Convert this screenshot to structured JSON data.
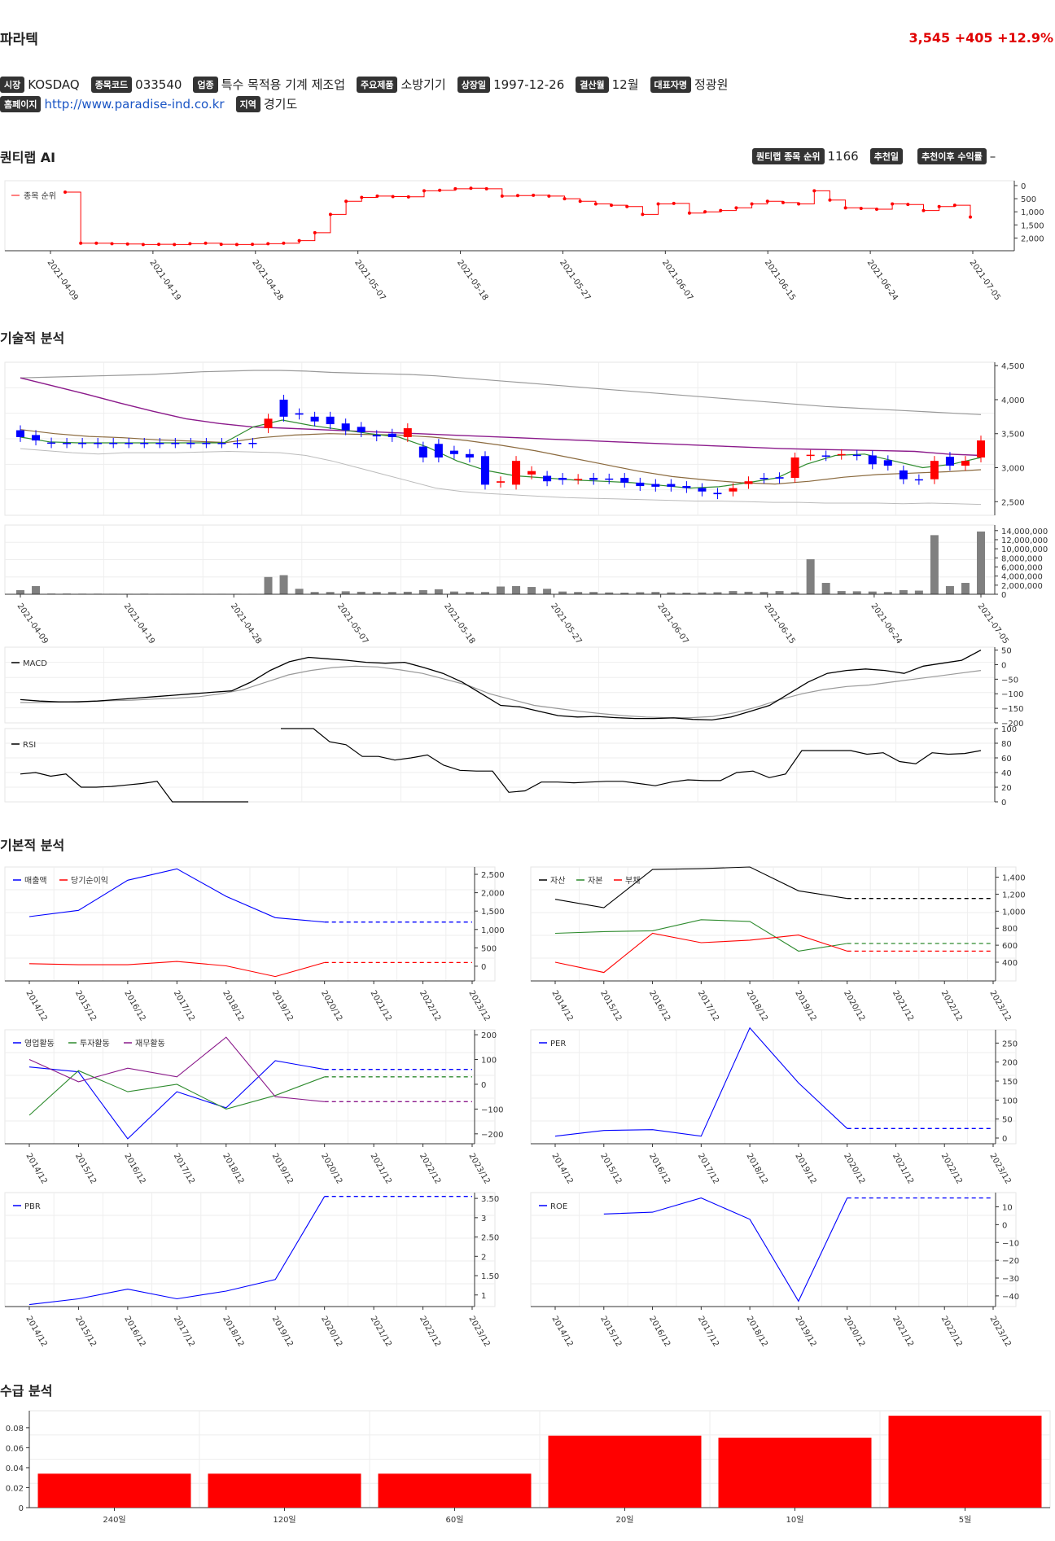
{
  "header": {
    "company": "파라텍",
    "price": "3,545",
    "change": "+405",
    "change_pct": "+12.9%"
  },
  "info": {
    "market_label": "시장",
    "market": "KOSDAQ",
    "code_label": "종목코드",
    "code": "033540",
    "industry_label": "업종",
    "industry": "특수 목적용 기계 제조업",
    "product_label": "주요제품",
    "product": "소방기기",
    "listing_label": "상장일",
    "listing": "1997-12-26",
    "fiscal_label": "결산월",
    "fiscal": "12월",
    "ceo_label": "대표자명",
    "ceo": "정광원",
    "homepage_label": "홈페이지",
    "homepage": "http://www.paradise-ind.co.kr",
    "region_label": "지역",
    "region": "경기도"
  },
  "sections": {
    "ai": "퀀티랩 AI",
    "tech": "기술적 분석",
    "fund": "기본적 분석",
    "flow": "수급 분석"
  },
  "ai_panel": {
    "rank_label": "퀀티랩 종목 순위",
    "rank": "1166",
    "rec_date_label": "추천일",
    "rec_date": "",
    "rec_return_label": "추천이후 수익률",
    "rec_return": "–"
  },
  "colors": {
    "up": "#ff0000",
    "down": "#0000ff",
    "ma_short": "#2e8b2e",
    "ma_mid": "#8b6a3e",
    "ma_long": "#8b1a8b"
  },
  "chart_data": [
    {
      "id": "rank",
      "type": "line",
      "legend": [
        "종목 순위"
      ],
      "x_ticks": [
        "2021-04-09",
        "2021-04-19",
        "2021-04-28",
        "2021-05-07",
        "2021-05-18",
        "2021-05-27",
        "2021-06-07",
        "2021-06-15",
        "2021-06-24",
        "2021-07-05"
      ],
      "y_ticks": [
        "0",
        "500",
        "1,000",
        "1,500",
        "2,000"
      ],
      "ylim": [
        2300,
        0
      ],
      "values": [
        250,
        2200,
        2200,
        2220,
        2230,
        2250,
        2240,
        2250,
        2220,
        2200,
        2240,
        2250,
        2240,
        2220,
        2200,
        2100,
        1800,
        1100,
        600,
        450,
        400,
        420,
        430,
        200,
        180,
        120,
        100,
        120,
        400,
        380,
        370,
        400,
        500,
        600,
        700,
        750,
        800,
        1100,
        700,
        680,
        1050,
        1000,
        950,
        850,
        700,
        600,
        650,
        700,
        200,
        550,
        850,
        870,
        900,
        700,
        720,
        950,
        800,
        750,
        1200
      ]
    },
    {
      "id": "price",
      "type": "candlestick",
      "x_ticks": [
        "2021-04-09",
        "2021-04-19",
        "2021-04-28",
        "2021-05-07",
        "2021-05-18",
        "2021-05-27",
        "2021-06-07",
        "2021-06-15",
        "2021-06-24",
        "2021-07-05"
      ],
      "y_ticks": [
        "2,500",
        "3,000",
        "3,500",
        "4,000",
        "4,500"
      ],
      "ylim": [
        2300,
        4550
      ],
      "candles": [
        [
          3550,
          3450
        ],
        [
          3480,
          3400
        ],
        [
          3370,
          3360
        ],
        [
          3365,
          3360
        ],
        [
          3365,
          3360
        ],
        [
          3365,
          3360
        ],
        [
          3365,
          3360
        ],
        [
          3365,
          3360
        ],
        [
          3365,
          3360
        ],
        [
          3365,
          3360
        ],
        [
          3365,
          3360
        ],
        [
          3365,
          3360
        ],
        [
          3365,
          3360
        ],
        [
          3365,
          3360
        ],
        [
          3365,
          3360
        ],
        [
          3365,
          3360
        ],
        [
          3580,
          3720
        ],
        [
          4000,
          3750
        ],
        [
          3800,
          3780
        ],
        [
          3750,
          3680
        ],
        [
          3750,
          3640
        ],
        [
          3650,
          3550
        ],
        [
          3600,
          3520
        ],
        [
          3480,
          3460
        ],
        [
          3500,
          3450
        ],
        [
          3450,
          3580
        ],
        [
          3310,
          3150
        ],
        [
          3350,
          3150
        ],
        [
          3250,
          3200
        ],
        [
          3200,
          3150
        ],
        [
          3170,
          2750
        ],
        [
          2780,
          2800
        ],
        [
          2750,
          3100
        ],
        [
          2900,
          2950
        ],
        [
          2880,
          2800
        ],
        [
          2850,
          2820
        ],
        [
          2825,
          2835
        ],
        [
          2850,
          2820
        ],
        [
          2840,
          2830
        ],
        [
          2850,
          2780
        ],
        [
          2780,
          2730
        ],
        [
          2760,
          2720
        ],
        [
          2760,
          2720
        ],
        [
          2730,
          2700
        ],
        [
          2700,
          2650
        ],
        [
          2630,
          2610
        ],
        [
          2650,
          2700
        ],
        [
          2760,
          2800
        ],
        [
          2850,
          2840
        ],
        [
          2860,
          2840
        ],
        [
          2850,
          3150
        ],
        [
          3180,
          3190
        ],
        [
          3180,
          3170
        ],
        [
          3190,
          3200
        ],
        [
          3190,
          3180
        ],
        [
          3180,
          3050
        ],
        [
          3110,
          3030
        ],
        [
          2960,
          2830
        ],
        [
          2830,
          2820
        ],
        [
          2830,
          3100
        ],
        [
          3160,
          3030
        ],
        [
          3030,
          3100
        ],
        [
          3150,
          3400
        ]
      ],
      "bb_upper": [
        4320,
        4330,
        4340,
        4350,
        4360,
        4370,
        4390,
        4410,
        4420,
        4430,
        4430,
        4420,
        4400,
        4390,
        4380,
        4370,
        4350,
        4320,
        4290,
        4260,
        4230,
        4200,
        4170,
        4140,
        4110,
        4080,
        4050,
        4020,
        3990,
        3960,
        3930,
        3900,
        3880,
        3860,
        3840,
        3820,
        3800,
        3780
      ],
      "bb_lower": [
        3280,
        3250,
        3220,
        3200,
        3220,
        3220,
        3220,
        3230,
        3240,
        3230,
        3220,
        3180,
        3100,
        3000,
        2900,
        2800,
        2700,
        2650,
        2620,
        2600,
        2580,
        2560,
        2550,
        2540,
        2530,
        2520,
        2510,
        2510,
        2500,
        2490,
        2490,
        2480,
        2480,
        2480,
        2470,
        2480,
        2470,
        2460
      ],
      "ma5": [
        3450,
        3380,
        3365,
        3365,
        3365,
        3365,
        3365,
        3365,
        3600,
        3700,
        3620,
        3560,
        3500,
        3450,
        3300,
        3100,
        2960,
        2880,
        2850,
        2820,
        2800,
        2780,
        2740,
        2700,
        2720,
        2780,
        2850,
        3050,
        3180,
        3200,
        3100,
        3000,
        3050,
        3150
      ],
      "ma20": [
        3560,
        3500,
        3460,
        3440,
        3410,
        3390,
        3370,
        3440,
        3480,
        3500,
        3490,
        3480,
        3450,
        3400,
        3330,
        3250,
        3150,
        3050,
        2950,
        2870,
        2820,
        2780,
        2760,
        2800,
        2860,
        2900,
        2920,
        2940,
        2970
      ],
      "ma60": [
        4320,
        4200,
        4080,
        3950,
        3830,
        3720,
        3650,
        3600,
        3580,
        3560,
        3540,
        3520,
        3500,
        3480,
        3460,
        3440,
        3420,
        3400,
        3380,
        3360,
        3340,
        3320,
        3300,
        3280,
        3270,
        3260,
        3250,
        3240,
        3200,
        3180
      ]
    },
    {
      "id": "volume",
      "type": "bar",
      "y_ticks": [
        "0",
        "2,000,000",
        "4,000,000",
        "6,000,000",
        "8,000,000",
        "10,000,000",
        "12,000,000",
        "14,000,000"
      ],
      "ylim": [
        0,
        14500000
      ],
      "values": [
        900000,
        1800000,
        150000,
        150000,
        120000,
        120000,
        100000,
        100000,
        120000,
        100000,
        100000,
        100000,
        100000,
        100000,
        100000,
        100000,
        3800000,
        4200000,
        1200000,
        500000,
        500000,
        650000,
        550000,
        500000,
        500000,
        550000,
        900000,
        1100000,
        600000,
        500000,
        500000,
        1700000,
        1800000,
        1600000,
        1200000,
        600000,
        500000,
        500000,
        400000,
        350000,
        450000,
        500000,
        400000,
        350000,
        400000,
        450000,
        700000,
        550000,
        500000,
        700000,
        450000,
        7700000,
        2500000,
        700000,
        650000,
        600000,
        500000,
        900000,
        800000,
        13000000,
        1800000,
        2500000,
        13800000
      ]
    },
    {
      "id": "macd",
      "type": "line",
      "legend": [
        "MACD"
      ],
      "y_ticks": [
        "50",
        "0",
        "−50",
        "−100",
        "−150",
        "−200"
      ],
      "ylim": [
        -200,
        60
      ],
      "macd": [
        -120,
        -125,
        -128,
        -128,
        -125,
        -120,
        -115,
        -110,
        -105,
        -100,
        -95,
        -90,
        -60,
        -20,
        10,
        25,
        20,
        15,
        8,
        5,
        8,
        -10,
        -30,
        -60,
        -100,
        -140,
        -145,
        -160,
        -175,
        -180,
        -178,
        -182,
        -185,
        -185,
        -183,
        -188,
        -190,
        -180,
        -160,
        -140,
        -100,
        -60,
        -30,
        -20,
        -15,
        -20,
        -30,
        -5,
        5,
        15,
        50
      ],
      "signal": [
        -130,
        -130,
        -128,
        -126,
        -124,
        -122,
        -118,
        -115,
        -110,
        -100,
        -85,
        -60,
        -35,
        -20,
        -10,
        -5,
        -8,
        -18,
        -30,
        -50,
        -70,
        -100,
        -120,
        -140,
        -150,
        -160,
        -168,
        -175,
        -180,
        -182,
        -182,
        -178,
        -165,
        -145,
        -120,
        -100,
        -85,
        -75,
        -70,
        -60,
        -50,
        -40,
        -30,
        -20
      ]
    },
    {
      "id": "rsi",
      "type": "line",
      "legend": [
        "RSI"
      ],
      "y_ticks": [
        "100",
        "80",
        "60",
        "40",
        "20",
        "0"
      ],
      "ylim": [
        0,
        100
      ],
      "seg1": [
        38,
        40,
        35,
        38,
        20,
        20,
        21,
        23,
        25,
        28,
        0,
        0,
        0,
        0,
        0,
        0
      ],
      "seg2": [
        100,
        100,
        100,
        82,
        78,
        62,
        62,
        57,
        60,
        64,
        50,
        43,
        42,
        42,
        13,
        15,
        27,
        27,
        26,
        27,
        28,
        28,
        25,
        22,
        27,
        30,
        29,
        29,
        40,
        42,
        33,
        38,
        70,
        70,
        70,
        70,
        65,
        67,
        55,
        52,
        67,
        65,
        66,
        70
      ]
    },
    {
      "id": "sales",
      "type": "line",
      "legend": [
        "매출액",
        "당기순이익"
      ],
      "x_ticks": [
        "2014/12",
        "2015/12",
        "2016/12",
        "2017/12",
        "2018/12",
        "2019/12",
        "2020/12",
        "2021/12",
        "2022/12",
        "2023/12"
      ],
      "y_ticks": [
        "2,500",
        "2,000",
        "1,500",
        "1,000",
        "500",
        "0"
      ],
      "ylim": [
        -400,
        2700
      ],
      "series": [
        {
          "name": "매출액",
          "values": [
            1350,
            1520,
            2340,
            2650,
            1900,
            1320,
            1200,
            1200,
            1200,
            1200
          ]
        },
        {
          "name": "당기순이익",
          "values": [
            70,
            40,
            40,
            130,
            10,
            -280,
            100,
            100,
            100,
            100
          ]
        }
      ]
    },
    {
      "id": "assets",
      "type": "line",
      "legend": [
        "자산",
        "자본",
        "부채"
      ],
      "x_ticks": [
        "2014/12",
        "2015/12",
        "2016/12",
        "2017/12",
        "2018/12",
        "2019/12",
        "2020/12",
        "2021/12",
        "2022/12",
        "2023/12"
      ],
      "y_ticks": [
        "1,400",
        "1,200",
        "1,000",
        "800",
        "600",
        "400"
      ],
      "ylim": [
        180,
        1520
      ],
      "series": [
        {
          "name": "자산",
          "values": [
            1140,
            1040,
            1490,
            1500,
            1520,
            1240,
            1150,
            1150,
            1150,
            1150
          ]
        },
        {
          "name": "자본",
          "values": [
            740,
            760,
            770,
            900,
            880,
            530,
            620,
            620,
            620,
            620
          ]
        },
        {
          "name": "부채",
          "values": [
            400,
            280,
            740,
            630,
            660,
            720,
            530,
            530,
            530,
            530
          ]
        }
      ]
    },
    {
      "id": "cashflow",
      "type": "line",
      "legend": [
        "영업활동",
        "투자활동",
        "재무활동"
      ],
      "x_ticks": [
        "2014/12",
        "2015/12",
        "2016/12",
        "2017/12",
        "2018/12",
        "2019/12",
        "2020/12",
        "2021/12",
        "2022/12",
        "2023/12"
      ],
      "y_ticks": [
        "200",
        "100",
        "0",
        "−100",
        "−200"
      ],
      "ylim": [
        -240,
        220
      ],
      "series": [
        {
          "name": "영업활동",
          "values": [
            70,
            50,
            -220,
            -30,
            -95,
            95,
            60,
            60,
            60,
            60
          ]
        },
        {
          "name": "투자활동",
          "values": [
            -125,
            55,
            -30,
            0,
            -100,
            -45,
            30,
            30,
            30,
            30
          ]
        },
        {
          "name": "재무활동",
          "values": [
            100,
            10,
            65,
            30,
            190,
            -50,
            -70,
            -70,
            -70,
            -70
          ]
        }
      ]
    },
    {
      "id": "per",
      "type": "line",
      "legend": [
        "PER"
      ],
      "x_ticks": [
        "2014/12",
        "2015/12",
        "2016/12",
        "2017/12",
        "2018/12",
        "2019/12",
        "2020/12",
        "2021/12",
        "2022/12",
        "2023/12"
      ],
      "y_ticks": [
        "250",
        "200",
        "150",
        "100",
        "50",
        "0"
      ],
      "ylim": [
        -15,
        285
      ],
      "series": [
        {
          "name": "PER",
          "values": [
            5,
            20,
            22,
            5,
            290,
            145,
            25,
            25,
            25,
            25
          ]
        }
      ]
    },
    {
      "id": "pbr",
      "type": "line",
      "legend": [
        "PBR"
      ],
      "x_ticks": [
        "2014/12",
        "2015/12",
        "2016/12",
        "2017/12",
        "2018/12",
        "2019/12",
        "2020/12",
        "2021/12",
        "2022/12",
        "2023/12"
      ],
      "y_ticks": [
        "3.50",
        "3",
        "2.50",
        "2",
        "1.50",
        "1"
      ],
      "ylim": [
        0.7,
        3.65
      ],
      "series": [
        {
          "name": "PBR",
          "values": [
            0.75,
            0.9,
            1.15,
            0.9,
            1.1,
            1.4,
            3.55,
            3.55,
            3.55,
            3.55
          ]
        }
      ]
    },
    {
      "id": "roe",
      "type": "line",
      "legend": [
        "ROE"
      ],
      "x_ticks": [
        "2014/12",
        "2015/12",
        "2016/12",
        "2017/12",
        "2018/12",
        "2019/12",
        "2020/12",
        "2021/12",
        "2022/12",
        "2023/12"
      ],
      "y_ticks": [
        "10",
        "0",
        "−10",
        "−20",
        "−30",
        "−40"
      ],
      "ylim": [
        -46,
        18
      ],
      "series": [
        {
          "name": "ROE",
          "values": [
            null,
            6,
            7,
            15,
            3,
            -43,
            15,
            15,
            15,
            15
          ]
        }
      ]
    },
    {
      "id": "flow",
      "type": "bar",
      "categories": [
        "240일",
        "120일",
        "60일",
        "20일",
        "10일",
        "5일"
      ],
      "y_ticks": [
        "0.08",
        "0.06",
        "0.04",
        "0.02",
        "0"
      ],
      "ylim": [
        0,
        0.097
      ],
      "values": [
        0.034,
        0.034,
        0.034,
        0.072,
        0.07,
        0.092
      ]
    }
  ]
}
